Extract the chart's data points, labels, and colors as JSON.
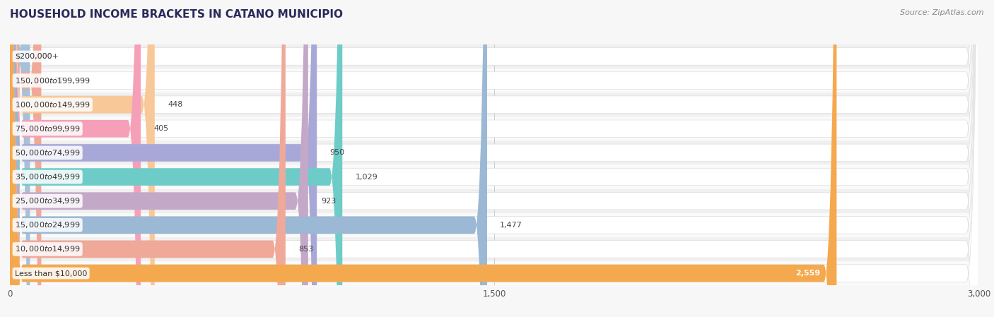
{
  "title": "HOUSEHOLD INCOME BRACKETS IN CATANO MUNICIPIO",
  "source": "Source: ZipAtlas.com",
  "categories": [
    "Less than $10,000",
    "$10,000 to $14,999",
    "$15,000 to $24,999",
    "$25,000 to $34,999",
    "$35,000 to $49,999",
    "$50,000 to $74,999",
    "$75,000 to $99,999",
    "$100,000 to $149,999",
    "$150,000 to $199,999",
    "$200,000+"
  ],
  "values": [
    2559,
    853,
    1477,
    923,
    1029,
    950,
    405,
    448,
    97,
    62
  ],
  "bar_colors": [
    "#F5A94E",
    "#F0A898",
    "#9BB8D4",
    "#C4A8C8",
    "#6ECCC8",
    "#A8A8D8",
    "#F5A0B8",
    "#F8C898",
    "#F0A898",
    "#A8C0D8"
  ],
  "xlim": [
    0,
    3000
  ],
  "xticks": [
    0,
    1500,
    3000
  ],
  "background_color": "#f7f7f7",
  "bar_bg_color": "#ffffff",
  "row_bg_colors": [
    "#f0f0f0",
    "#fafafa"
  ],
  "title_fontsize": 11,
  "source_fontsize": 8,
  "label_fontsize": 8,
  "value_fontsize": 8
}
